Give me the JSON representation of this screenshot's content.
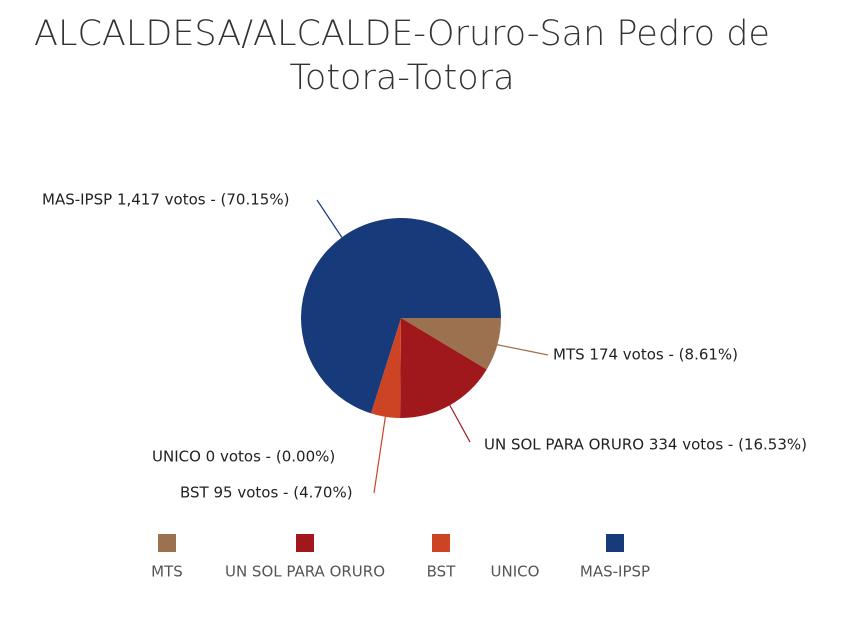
{
  "chart_data": {
    "type": "pie",
    "title": "ALCALDESA/ALCALDE-Oruro-San Pedro de Totora-Totora",
    "categories": [
      "MTS",
      "UN SOL PARA ORURO",
      "BST",
      "UNICO",
      "MAS-IPSP"
    ],
    "values": [
      174,
      334,
      95,
      0,
      1417
    ],
    "value_labels": [
      "MTS 174 votos - (8.61%)",
      "UN SOL PARA ORURO 334 votos - (16.53%)",
      "BST 95 votos - (4.70%)",
      "UNICO 0 votos - (0.00%)",
      "MAS-IPSP 1,417 votos - (70.15%)"
    ],
    "colors": [
      "#9b7150",
      "#a0171c",
      "#cd4425",
      "#ffffff",
      "#173a7a"
    ],
    "legend": "bottom"
  }
}
